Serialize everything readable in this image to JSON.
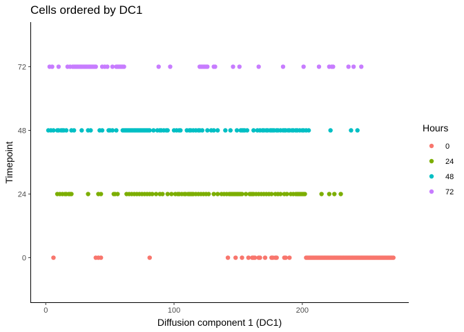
{
  "chart_data": {
    "type": "scatter",
    "title": "Cells ordered by DC1",
    "xlabel": "Diffusion component 1 (DC1)",
    "ylabel": "Timepoint",
    "xlim": [
      -12,
      283
    ],
    "ylim": [
      -16.8,
      88.8
    ],
    "x_ticks": [
      0,
      100,
      200
    ],
    "y_ticks": [
      0,
      24,
      48,
      72
    ],
    "x_tick_labels": [
      "0",
      "100",
      "200"
    ],
    "y_tick_labels": [
      "0",
      "24",
      "48",
      "72"
    ],
    "grid": false,
    "legend": {
      "title": "Hours",
      "position": "right",
      "entries": [
        "0",
        "24",
        "48",
        "72"
      ]
    },
    "series": [
      {
        "name": "0",
        "color": "#F8766D",
        "y": 0,
        "x": [
          6,
          39,
          41,
          43,
          81,
          142,
          148,
          153,
          158,
          161,
          162,
          163,
          166,
          167,
          171,
          176,
          177,
          179,
          180,
          186,
          187,
          190,
          203,
          204,
          205,
          206,
          207,
          208,
          209,
          210,
          211,
          212,
          213,
          214,
          215,
          216,
          217,
          218,
          219,
          220,
          221,
          222,
          223,
          224,
          225,
          226,
          227,
          228,
          229,
          230,
          231,
          232,
          233,
          234,
          235,
          236,
          237,
          238,
          239,
          240,
          241,
          242,
          243,
          244,
          245,
          246,
          247,
          248,
          249,
          250,
          251,
          252,
          253,
          254,
          255,
          256,
          257,
          258,
          259,
          260,
          261,
          262,
          263,
          264,
          265,
          266,
          267,
          268,
          269,
          270,
          271
        ]
      },
      {
        "name": "24",
        "color": "#7CAE00",
        "y": 24,
        "x": [
          9,
          11,
          13,
          15,
          16,
          18,
          19,
          20,
          33,
          41,
          43,
          53,
          54,
          56,
          63,
          65,
          67,
          69,
          71,
          73,
          75,
          77,
          79,
          81,
          83,
          86,
          89,
          91,
          95,
          98,
          101,
          103,
          104,
          106,
          108,
          109,
          111,
          112,
          113,
          114,
          115,
          117,
          119,
          121,
          123,
          125,
          127,
          131,
          134,
          137,
          139,
          141,
          143,
          144,
          145,
          146,
          147,
          148,
          149,
          150,
          151,
          152,
          153,
          156,
          159,
          160,
          161,
          162,
          164,
          166,
          168,
          170,
          172,
          174,
          176,
          179,
          181,
          183,
          186,
          188,
          191,
          193,
          195,
          196,
          197,
          198,
          199,
          200,
          201,
          202,
          215,
          221,
          225,
          230
        ]
      },
      {
        "name": "48",
        "color": "#00BFC4",
        "y": 48,
        "x": [
          2,
          4,
          6,
          9,
          10,
          12,
          13,
          14,
          16,
          20,
          22,
          28,
          33,
          35,
          42,
          44,
          49,
          50,
          52,
          55,
          60,
          61,
          62,
          63,
          64,
          65,
          66,
          67,
          68,
          69,
          70,
          71,
          72,
          73,
          74,
          75,
          76,
          77,
          78,
          79,
          80,
          81,
          84,
          87,
          89,
          90,
          92,
          94,
          95,
          100,
          102,
          104,
          105,
          110,
          112,
          113,
          115,
          117,
          119,
          120,
          122,
          126,
          129,
          131,
          134,
          140,
          144,
          149,
          152,
          153,
          154,
          155,
          157,
          162,
          165,
          167,
          169,
          170,
          172,
          173,
          175,
          176,
          177,
          178,
          180,
          181,
          183,
          185,
          186,
          187,
          189,
          190,
          192,
          193,
          195,
          196,
          198,
          200,
          201,
          203,
          205,
          222,
          238,
          243
        ]
      },
      {
        "name": "72",
        "color": "#C77CFF",
        "y": 72,
        "x": [
          3,
          5,
          10,
          17,
          19,
          21,
          22,
          23,
          24,
          25,
          26,
          27,
          28,
          29,
          30,
          31,
          32,
          33,
          34,
          35,
          36,
          37,
          38,
          39,
          44,
          46,
          48,
          52,
          55,
          56,
          57,
          58,
          59,
          60,
          61,
          88,
          97,
          120,
          121,
          122,
          123,
          124,
          125,
          126,
          131,
          132,
          146,
          151,
          166,
          185,
          201,
          213,
          221,
          223,
          224,
          236,
          240,
          246
        ]
      }
    ]
  }
}
